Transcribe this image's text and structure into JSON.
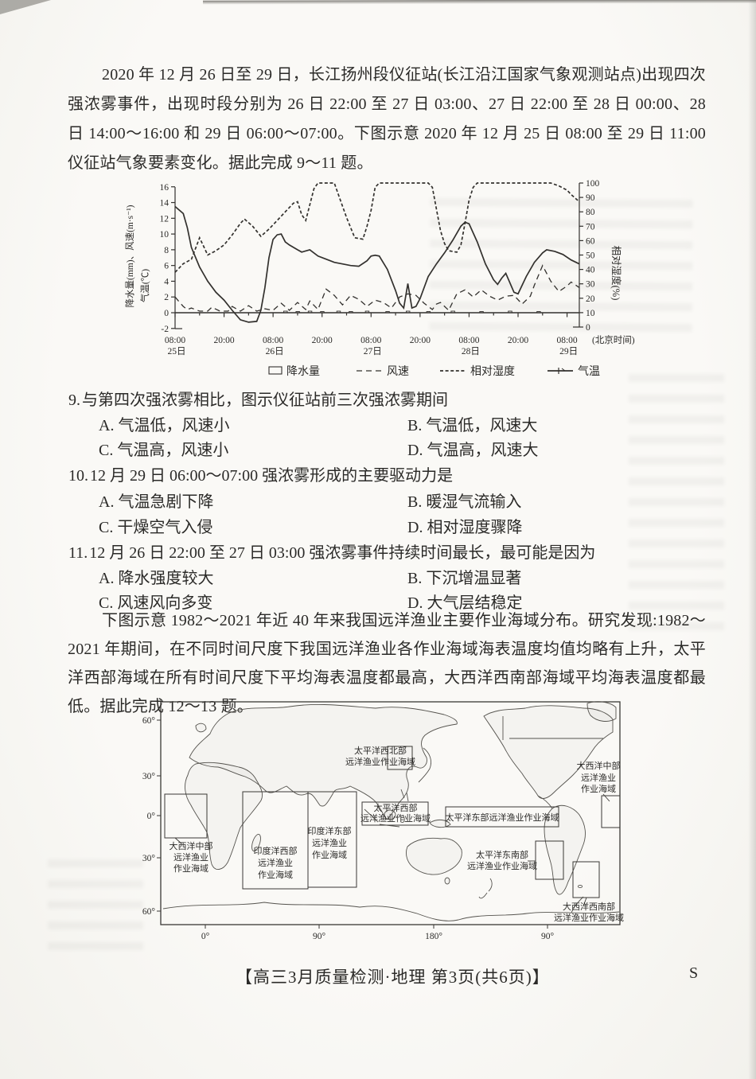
{
  "intro": {
    "p1": "2020 年 12 月 26 日至 29 日，长江扬州段仪征站(长江沿江国家气象观测站点)出现四次强浓雾事件，出现时段分别为 26 日 22:00 至 27 日 03:00、27 日 22:00 至 28 日 00:00、28 日 14:00～16:00 和 29 日 06:00～07:00。下图示意 2020 年 12 月 25 日 08:00 至 29 日 11:00 仪征站气象要素变化。据此完成 9～11 题。",
    "p2": "下图示意 1982～2021 年近 40 年来我国远洋渔业主要作业海域分布。研究发现:1982～2021 年期间，在不同时间尺度下我国远洋渔业各作业海域海表温度均值均略有上升，太平洋西部海域在所有时间尺度下平均海表温度都最高，大西洋西南部海域平均海表温度都最低。据此完成 12～13 题。"
  },
  "chart": {
    "y_left_title_line1": "降水量(mm)、风速(m·s⁻¹)",
    "y_left_title_line2": "气温(℃)",
    "y_right_title": "相对湿度(%)",
    "x_note": "(北京时间)",
    "y_left_ticks": [
      16,
      14,
      12,
      10,
      8,
      6,
      4,
      2,
      0,
      -2
    ],
    "y_right_ticks": [
      100,
      90,
      80,
      70,
      60,
      50,
      40,
      30,
      20,
      10,
      0
    ],
    "x_ticks": [
      {
        "t": 0,
        "time": "08:00",
        "day": "25日"
      },
      {
        "t": 12,
        "time": "20:00",
        "day": ""
      },
      {
        "t": 24,
        "time": "08:00",
        "day": "26日"
      },
      {
        "t": 36,
        "time": "20:00",
        "day": ""
      },
      {
        "t": 48,
        "time": "08:00",
        "day": "27日"
      },
      {
        "t": 60,
        "time": "20:00",
        "day": ""
      },
      {
        "t": 72,
        "time": "08:00",
        "day": "28日"
      },
      {
        "t": 84,
        "time": "20:00",
        "day": ""
      },
      {
        "t": 96,
        "time": "08:00",
        "day": "29日"
      }
    ],
    "legend": [
      "降水量",
      "风速",
      "相对湿度",
      "气温"
    ]
  },
  "chart_data": {
    "type": "line",
    "x_axis": "hours since 25日 08:00 (北京时间)",
    "x_range": [
      0,
      99
    ],
    "y_left_label": "降水量(mm)、风速(m·s⁻¹)、气温(℃)",
    "y_left_range": [
      -2,
      16
    ],
    "y_right_label": "相对湿度(%)",
    "y_right_range": [
      0,
      100
    ],
    "grid": false,
    "legend_position": "bottom",
    "series": [
      {
        "name": "气温",
        "style": "solid",
        "axis": "left",
        "points": [
          [
            0,
            13.5
          ],
          [
            2,
            12.6
          ],
          [
            3,
            10.8
          ],
          [
            4,
            8.3
          ],
          [
            6,
            5.8
          ],
          [
            8,
            4.0
          ],
          [
            10,
            2.6
          ],
          [
            12,
            1.6
          ],
          [
            14,
            0.3
          ],
          [
            16,
            -0.9
          ],
          [
            18,
            -1.2
          ],
          [
            20,
            -1.1
          ],
          [
            21,
            0.3
          ],
          [
            22,
            3.2
          ],
          [
            23,
            7.0
          ],
          [
            24,
            9.3
          ],
          [
            25,
            9.9
          ],
          [
            26,
            10.0
          ],
          [
            27,
            9.0
          ],
          [
            28,
            8.6
          ],
          [
            30,
            8.0
          ],
          [
            31,
            7.7
          ],
          [
            33,
            8.0
          ],
          [
            35,
            7.2
          ],
          [
            37,
            6.8
          ],
          [
            39,
            6.4
          ],
          [
            41,
            6.2
          ],
          [
            43,
            6.0
          ],
          [
            45,
            5.9
          ],
          [
            47,
            6.6
          ],
          [
            48,
            7.2
          ],
          [
            49,
            7.3
          ],
          [
            50,
            7.2
          ],
          [
            52,
            5.5
          ],
          [
            54,
            2.8
          ],
          [
            55,
            1.2
          ],
          [
            56,
            0.6
          ],
          [
            57,
            3.7
          ],
          [
            58,
            0.6
          ],
          [
            59,
            0.8
          ],
          [
            60,
            1.8
          ],
          [
            62,
            4.6
          ],
          [
            64,
            6.2
          ],
          [
            66,
            7.6
          ],
          [
            68,
            9.2
          ],
          [
            70,
            11.0
          ],
          [
            71,
            11.5
          ],
          [
            72,
            11.3
          ],
          [
            74,
            9.0
          ],
          [
            76,
            6.2
          ],
          [
            78,
            4.2
          ],
          [
            79,
            3.6
          ],
          [
            80,
            4.4
          ],
          [
            81,
            5.0
          ],
          [
            83,
            2.6
          ],
          [
            84,
            2.4
          ],
          [
            86,
            4.6
          ],
          [
            88,
            6.4
          ],
          [
            90,
            7.6
          ],
          [
            91,
            8.0
          ],
          [
            93,
            7.8
          ],
          [
            95,
            7.4
          ],
          [
            97,
            6.7
          ],
          [
            99,
            6.2
          ]
        ]
      },
      {
        "name": "风速",
        "style": "dashed",
        "axis": "left",
        "points": [
          [
            0,
            2.0
          ],
          [
            1,
            1.4
          ],
          [
            2,
            0.8
          ],
          [
            3,
            0.4
          ],
          [
            4,
            0.6
          ],
          [
            6,
            0.2
          ],
          [
            8,
            0.2
          ],
          [
            9,
            0.7
          ],
          [
            11,
            0.2
          ],
          [
            13,
            0.2
          ],
          [
            14,
            0.8
          ],
          [
            16,
            0.2
          ],
          [
            18,
            0.9
          ],
          [
            20,
            0.2
          ],
          [
            22,
            0.5
          ],
          [
            24,
            0.3
          ],
          [
            26,
            1.2
          ],
          [
            28,
            0.3
          ],
          [
            30,
            1.3
          ],
          [
            32,
            0.4
          ],
          [
            33,
            1.5
          ],
          [
            35,
            0.4
          ],
          [
            37,
            3.0
          ],
          [
            39,
            2.2
          ],
          [
            41,
            1.0
          ],
          [
            43,
            2.2
          ],
          [
            45,
            1.7
          ],
          [
            47,
            0.8
          ],
          [
            49,
            1.6
          ],
          [
            51,
            1.3
          ],
          [
            53,
            0.6
          ],
          [
            55,
            2.0
          ],
          [
            57,
            2.4
          ],
          [
            59,
            2.2
          ],
          [
            61,
            1.2
          ],
          [
            63,
            0.4
          ],
          [
            64,
            1.1
          ],
          [
            65,
            1.3
          ],
          [
            67,
            0.3
          ],
          [
            69,
            2.4
          ],
          [
            71,
            2.9
          ],
          [
            73,
            2.0
          ],
          [
            75,
            2.9
          ],
          [
            77,
            2.1
          ],
          [
            79,
            1.6
          ],
          [
            81,
            2.1
          ],
          [
            83,
            2.2
          ],
          [
            85,
            1.1
          ],
          [
            87,
            2.1
          ],
          [
            88,
            3.5
          ],
          [
            90,
            6.0
          ],
          [
            92,
            4.0
          ],
          [
            94,
            2.7
          ],
          [
            96,
            3.4
          ],
          [
            97,
            3.9
          ],
          [
            99,
            3.2
          ]
        ]
      },
      {
        "name": "相对湿度",
        "style": "dense-dashed",
        "axis": "right",
        "points": [
          [
            0,
            38
          ],
          [
            2,
            44
          ],
          [
            4,
            47
          ],
          [
            6,
            62
          ],
          [
            8,
            50
          ],
          [
            10,
            53
          ],
          [
            12,
            57
          ],
          [
            14,
            64
          ],
          [
            16,
            72
          ],
          [
            17,
            75
          ],
          [
            19,
            70
          ],
          [
            21,
            63
          ],
          [
            23,
            68
          ],
          [
            25,
            74
          ],
          [
            27,
            80
          ],
          [
            29,
            86
          ],
          [
            30,
            87
          ],
          [
            31,
            78
          ],
          [
            32,
            74
          ],
          [
            34,
            96
          ],
          [
            35,
            100
          ],
          [
            39,
            100
          ],
          [
            40,
            92
          ],
          [
            42,
            76
          ],
          [
            44,
            62
          ],
          [
            46,
            61
          ],
          [
            47,
            70
          ],
          [
            48,
            81
          ],
          [
            49,
            97
          ],
          [
            50,
            100
          ],
          [
            62,
            100
          ],
          [
            63,
            97
          ],
          [
            64,
            82
          ],
          [
            65,
            67
          ],
          [
            66,
            58
          ],
          [
            67,
            53
          ],
          [
            69,
            52
          ],
          [
            70,
            57
          ],
          [
            71,
            72
          ],
          [
            72,
            88
          ],
          [
            73,
            97
          ],
          [
            74,
            100
          ],
          [
            92,
            100
          ],
          [
            94,
            98
          ],
          [
            96,
            95
          ],
          [
            97,
            92
          ],
          [
            99,
            87
          ]
        ]
      },
      {
        "name": "降水量",
        "style": "bars",
        "axis": "left",
        "points": [
          [
            27,
            0.2
          ],
          [
            30,
            0.15
          ],
          [
            33,
            0.2
          ],
          [
            36,
            0.15
          ],
          [
            40,
            0.2
          ],
          [
            43,
            0.15
          ],
          [
            47,
            0.2
          ],
          [
            52,
            0.15
          ],
          [
            57,
            0.2
          ],
          [
            62,
            0.15
          ],
          [
            68,
            0.2
          ],
          [
            75,
            0.15
          ],
          [
            82,
            0.2
          ],
          [
            89,
            0.15
          ]
        ]
      }
    ]
  },
  "questions": [
    {
      "number": "9.",
      "stem": "与第四次强浓雾相比，图示仪征站前三次强浓雾期间",
      "options": [
        {
          "label": "A.",
          "text": "气温低，风速小"
        },
        {
          "label": "B.",
          "text": "气温低，风速大"
        },
        {
          "label": "C.",
          "text": "气温高，风速小"
        },
        {
          "label": "D.",
          "text": "气温高，风速大"
        }
      ]
    },
    {
      "number": "10.",
      "stem": "12 月 29 日 06:00～07:00 强浓雾形成的主要驱动力是",
      "options": [
        {
          "label": "A.",
          "text": "气温急剧下降"
        },
        {
          "label": "B.",
          "text": "暖湿气流输入"
        },
        {
          "label": "C.",
          "text": "干燥空气入侵"
        },
        {
          "label": "D.",
          "text": "相对湿度骤降"
        }
      ]
    },
    {
      "number": "11.",
      "stem": "12 月 26 日 22:00 至 27 日 03:00 强浓雾事件持续时间最长，最可能是因为",
      "options": [
        {
          "label": "A.",
          "text": "降水强度较大"
        },
        {
          "label": "B.",
          "text": "下沉增温显著"
        },
        {
          "label": "C.",
          "text": "风速风向多变"
        },
        {
          "label": "D.",
          "text": "大气层结稳定"
        }
      ]
    }
  ],
  "map": {
    "lat_labels": [
      "60°",
      "30°",
      "0°",
      "30°",
      "60°"
    ],
    "lon_labels": [
      "0°",
      "90°",
      "180°",
      "90°"
    ],
    "regions": [
      {
        "id": "nw-pacific",
        "lines": [
          "太平洋西北部",
          "远洋渔业作业海域"
        ]
      },
      {
        "id": "w-pacific",
        "lines": [
          "太平洋西部",
          "远洋渔业作业海域"
        ]
      },
      {
        "id": "e-pacific",
        "lines": [
          "太平洋东部远洋渔业作业海域"
        ]
      },
      {
        "id": "se-pacific",
        "lines": [
          "太平洋东南部",
          "远洋渔业作业海域"
        ]
      },
      {
        "id": "e-indian",
        "lines": [
          "印度洋东部",
          "远洋渔业",
          "作业海域"
        ]
      },
      {
        "id": "w-indian",
        "lines": [
          "印度洋西部",
          "远洋渔业",
          "作业海域"
        ]
      },
      {
        "id": "c-atlantic-n",
        "lines": [
          "大西洋中部",
          "远洋渔业",
          "作业海域"
        ]
      },
      {
        "id": "c-atlantic-s",
        "lines": [
          "大西洋中部",
          "远洋渔业",
          "作业海域"
        ]
      },
      {
        "id": "sw-atlantic",
        "lines": [
          "大西洋西南部",
          "远洋渔业作业海域"
        ]
      }
    ]
  },
  "footer": {
    "text": "【高三3月质量检测·地理  第3页(共6页)】",
    "side_mark": "S"
  }
}
